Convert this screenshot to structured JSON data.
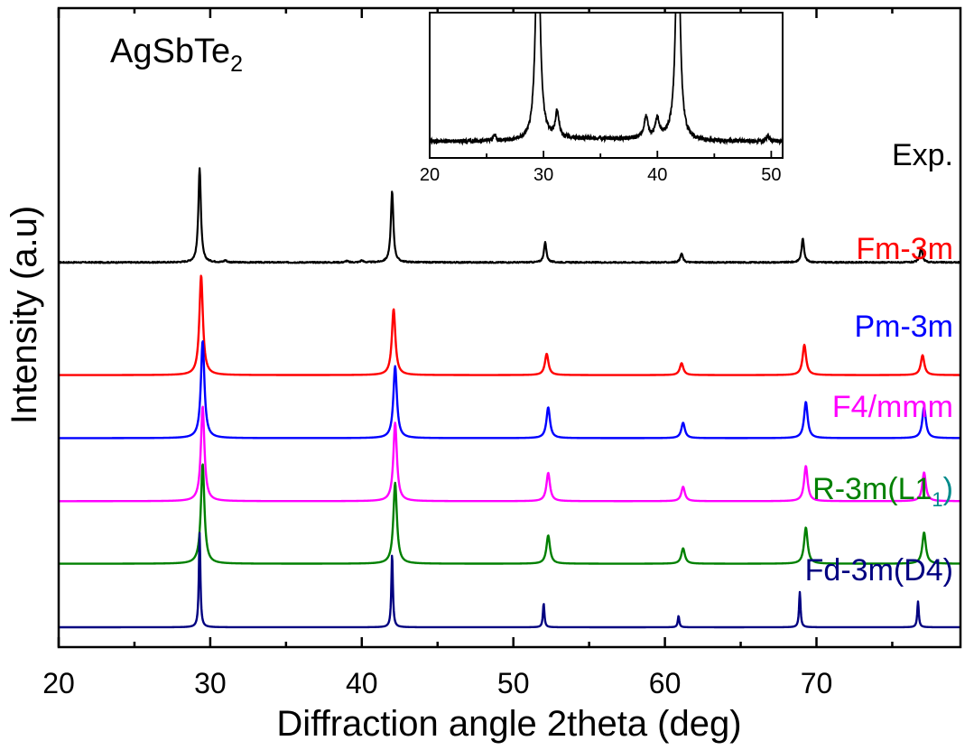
{
  "chart_data": [
    {
      "type": "line",
      "title": "AgSbTe",
      "title_subscript": "2",
      "xlabel": "Diffraction angle 2theta (deg)",
      "ylabel": "Intensity (a.u)",
      "xlim": [
        20,
        79.5
      ],
      "ylim": [
        0,
        1
      ],
      "x_ticks": [
        20,
        30,
        40,
        50,
        60,
        70
      ],
      "y_ticks_labeled": false,
      "grid": false,
      "legend": "inline labels at right of each curve",
      "series": [
        {
          "name": "Exp.",
          "color": "#000000",
          "baseline": 0.735,
          "linewidth": 2.2,
          "peak_width": 0.1,
          "noise": 0.0025,
          "peaks": [
            {
              "x": 29.3,
              "h": 0.19
            },
            {
              "x": 31.0,
              "h": 0.004
            },
            {
              "x": 39.0,
              "h": 0.003
            },
            {
              "x": 40.0,
              "h": 0.004
            },
            {
              "x": 42.0,
              "h": 0.143
            },
            {
              "x": 52.1,
              "h": 0.04
            },
            {
              "x": 61.1,
              "h": 0.018
            },
            {
              "x": 69.1,
              "h": 0.048
            },
            {
              "x": 76.9,
              "h": 0.03
            }
          ]
        },
        {
          "name": "Fm-3m",
          "color": "#ff0000",
          "baseline": 0.508,
          "linewidth": 2.4,
          "peak_width": 0.14,
          "noise": 0,
          "peaks": [
            {
              "x": 29.4,
              "h": 0.201
            },
            {
              "x": 42.1,
              "h": 0.133
            },
            {
              "x": 52.2,
              "h": 0.043
            },
            {
              "x": 61.1,
              "h": 0.024
            },
            {
              "x": 69.2,
              "h": 0.061
            },
            {
              "x": 77.0,
              "h": 0.04
            }
          ]
        },
        {
          "name": "Pm-3m",
          "color": "#0000ff",
          "baseline": 0.381,
          "linewidth": 2.4,
          "peak_width": 0.14,
          "noise": 0,
          "peaks": [
            {
              "x": 29.5,
              "h": 0.196
            },
            {
              "x": 42.2,
              "h": 0.145
            },
            {
              "x": 52.3,
              "h": 0.062
            },
            {
              "x": 61.2,
              "h": 0.031
            },
            {
              "x": 69.3,
              "h": 0.073
            },
            {
              "x": 77.1,
              "h": 0.063
            }
          ]
        },
        {
          "name": "F4/mmm",
          "color": "#ff00ff",
          "baseline": 0.254,
          "linewidth": 2.4,
          "peak_width": 0.14,
          "noise": 0,
          "peaks": [
            {
              "x": 29.5,
              "h": 0.191
            },
            {
              "x": 42.2,
              "h": 0.158
            },
            {
              "x": 52.3,
              "h": 0.057
            },
            {
              "x": 61.2,
              "h": 0.029
            },
            {
              "x": 69.3,
              "h": 0.071
            },
            {
              "x": 77.1,
              "h": 0.058
            }
          ]
        },
        {
          "name": "R-3m(L1",
          "name_subscript": "1",
          "name_suffix": ")",
          "suffix_color": "#008b8b",
          "color": "#008000",
          "baseline": 0.128,
          "linewidth": 2.4,
          "peak_width": 0.14,
          "noise": 0,
          "peaks": [
            {
              "x": 29.5,
              "h": 0.201
            },
            {
              "x": 42.2,
              "h": 0.163
            },
            {
              "x": 52.3,
              "h": 0.057
            },
            {
              "x": 61.2,
              "h": 0.031
            },
            {
              "x": 69.3,
              "h": 0.073
            },
            {
              "x": 77.1,
              "h": 0.063
            }
          ]
        },
        {
          "name": "Fd-3m(D4)",
          "color": "#000080",
          "baseline": 0.0,
          "linewidth": 2.4,
          "peak_width": 0.06,
          "noise": 0,
          "peaks": [
            {
              "x": 29.3,
              "h": 0.19
            },
            {
              "x": 42.0,
              "h": 0.148
            },
            {
              "x": 52.0,
              "h": 0.048
            },
            {
              "x": 60.9,
              "h": 0.023
            },
            {
              "x": 68.9,
              "h": 0.071
            },
            {
              "x": 76.7,
              "h": 0.052
            }
          ]
        }
      ]
    },
    {
      "type": "line",
      "role": "inset",
      "title": "",
      "xlabel": "",
      "ylabel": "",
      "xlim": [
        20,
        51
      ],
      "ylim": [
        0,
        1
      ],
      "x_ticks": [
        20,
        30,
        40,
        50
      ],
      "grid": false,
      "series": [
        {
          "name": "Exp. (zoomed)",
          "color": "#000000",
          "baseline": 0.08,
          "noise": 0.018,
          "peaks": [
            {
              "x": 25.7,
              "h": 0.05,
              "w": 0.15
            },
            {
              "x": 29.5,
              "h": 2.0,
              "w": 0.22
            },
            {
              "x": 31.2,
              "h": 0.22,
              "w": 0.18
            },
            {
              "x": 39.0,
              "h": 0.18,
              "w": 0.2
            },
            {
              "x": 40.0,
              "h": 0.16,
              "w": 0.2
            },
            {
              "x": 41.8,
              "h": 2.0,
              "w": 0.22
            },
            {
              "x": 49.7,
              "h": 0.05,
              "w": 0.15
            }
          ]
        }
      ]
    }
  ]
}
